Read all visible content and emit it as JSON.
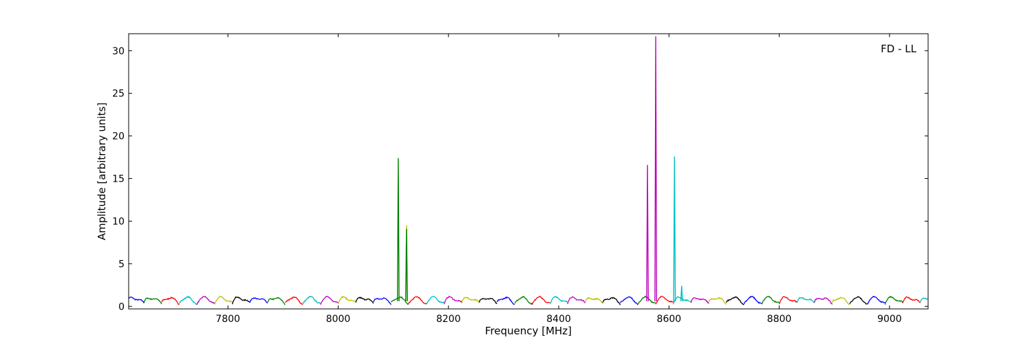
{
  "chart_data": {
    "type": "line",
    "title": "",
    "annotation": "FD - LL",
    "legend_location": "top-right",
    "xlabel": "Frequency [MHz]",
    "ylabel": "Amplitude [arbitrary units]",
    "xlim": [
      7620,
      9070
    ],
    "ylim": [
      -0.3,
      32
    ],
    "grid": false,
    "xticks": [
      7800,
      8000,
      8200,
      8400,
      8600,
      8800,
      9000
    ],
    "yticks": [
      0,
      5,
      10,
      15,
      20,
      25,
      30
    ],
    "band_width_mhz": 32,
    "band_colors": [
      "#0000ff",
      "#008000",
      "#ff0000",
      "#00bfbf",
      "#bf00bf",
      "#bfbf00",
      "#000000"
    ],
    "baseline_level": 1.0,
    "spikes": [
      {
        "x": 8109,
        "value": 17.4,
        "color": "#008000"
      },
      {
        "x": 8124,
        "value": 9.5,
        "color": "#bfbf00"
      },
      {
        "x": 8124,
        "value": 9.1,
        "color": "#008000"
      },
      {
        "x": 8561,
        "value": 16.6,
        "color": "#bf00bf"
      },
      {
        "x": 8576,
        "value": 31.7,
        "color": "#bf00bf"
      },
      {
        "x": 8610,
        "value": 17.6,
        "color": "#00bfbf"
      },
      {
        "x": 8623,
        "value": 2.4,
        "color": "#00bfbf"
      }
    ]
  }
}
